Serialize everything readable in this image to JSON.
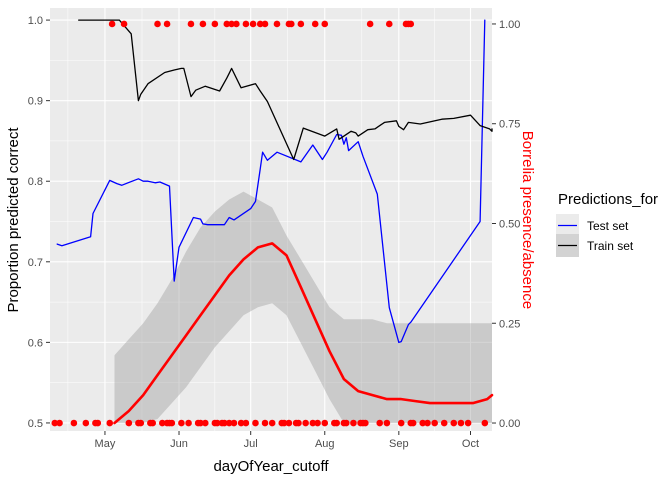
{
  "chart_data": {
    "type": "line",
    "xlabel": "dayOfYear_cutoff",
    "ylabel_left": "Proportion predicted correct",
    "ylabel_right": "Borrelia presence/absence",
    "xlim": [
      98,
      283
    ],
    "ylim_left": [
      0.49,
      1.015
    ],
    "ylim_right": [
      -0.02,
      1.04
    ],
    "x_ticks": [
      {
        "value": 121,
        "label": "May"
      },
      {
        "value": 152,
        "label": "Jun"
      },
      {
        "value": 182,
        "label": "Jul"
      },
      {
        "value": 213,
        "label": "Aug"
      },
      {
        "value": 244,
        "label": "Sep"
      },
      {
        "value": 274,
        "label": "Oct"
      }
    ],
    "y_ticks_left": [
      "0.5",
      "0.6",
      "0.7",
      "0.8",
      "0.9",
      "1.0"
    ],
    "y_ticks_right": [
      "0.00",
      "0.25",
      "0.50",
      "0.75",
      "1.00"
    ],
    "grid": true,
    "legend": {
      "title": "Predictions_for",
      "position": "right",
      "entries": [
        {
          "label": "Test set",
          "color": "#0000ff"
        },
        {
          "label": "Train set",
          "color": "#000000"
        }
      ]
    },
    "series": [
      {
        "name": "Test set",
        "axis": "left",
        "color": "#0000ff",
        "x": [
          101,
          103,
          115,
          116,
          123,
          126,
          128,
          135,
          137,
          139,
          142,
          144,
          148,
          150,
          152,
          158,
          161,
          162,
          164,
          165,
          171,
          173,
          175,
          182,
          184,
          186,
          187,
          189,
          193,
          203,
          208,
          212,
          214,
          218,
          220,
          221,
          222,
          223,
          227,
          229,
          235,
          240,
          244,
          245,
          248,
          249,
          278,
          280
        ],
        "y": [
          0.722,
          0.72,
          0.731,
          0.76,
          0.801,
          0.797,
          0.795,
          0.803,
          0.8,
          0.8,
          0.798,
          0.799,
          0.794,
          0.676,
          0.718,
          0.755,
          0.753,
          0.747,
          0.746,
          0.746,
          0.746,
          0.755,
          0.752,
          0.766,
          0.775,
          0.815,
          0.836,
          0.826,
          0.836,
          0.824,
          0.845,
          0.827,
          0.836,
          0.858,
          0.857,
          0.846,
          0.854,
          0.838,
          0.849,
          0.831,
          0.784,
          0.643,
          0.6,
          0.601,
          0.622,
          0.625,
          0.75,
          1.0
        ]
      },
      {
        "name": "Train set",
        "axis": "left",
        "color": "#000000",
        "x": [
          110,
          113,
          121,
          127,
          132,
          135,
          136,
          139,
          146,
          150,
          153,
          154,
          157,
          159,
          163,
          169,
          172,
          173,
          174,
          178,
          184,
          186,
          189,
          200,
          204,
          213,
          218,
          219,
          224,
          226,
          227,
          231,
          234,
          238,
          243,
          244,
          246,
          248,
          253,
          262,
          267,
          274,
          278,
          282,
          283,
          286
        ],
        "y": [
          1.0,
          1.0,
          1.0,
          1.0,
          0.983,
          0.9,
          0.908,
          0.921,
          0.935,
          0.938,
          0.94,
          0.94,
          0.905,
          0.913,
          0.918,
          0.912,
          0.928,
          0.934,
          0.94,
          0.916,
          0.921,
          0.912,
          0.899,
          0.827,
          0.866,
          0.856,
          0.865,
          0.852,
          0.862,
          0.86,
          0.856,
          0.864,
          0.865,
          0.873,
          0.875,
          0.868,
          0.864,
          0.873,
          0.871,
          0.877,
          0.878,
          0.882,
          0.869,
          0.865,
          0.862,
          0.865
        ]
      },
      {
        "name": "Smooth fit",
        "axis": "right",
        "color": "#ff0000",
        "x": [
          125,
          131,
          137,
          143,
          149,
          155,
          161,
          167,
          173,
          179,
          185,
          191,
          197,
          203,
          209,
          215,
          221,
          227,
          233,
          239,
          245,
          251,
          257,
          263,
          269,
          275,
          281,
          287
        ],
        "y": [
          0.0,
          0.03,
          0.07,
          0.12,
          0.17,
          0.22,
          0.27,
          0.32,
          0.37,
          0.41,
          0.44,
          0.45,
          0.42,
          0.34,
          0.26,
          0.18,
          0.11,
          0.08,
          0.07,
          0.06,
          0.06,
          0.055,
          0.05,
          0.05,
          0.05,
          0.05,
          0.06,
          0.07
        ],
        "ci_lower": [
          0.0,
          0.0,
          0.0,
          0.01,
          0.05,
          0.09,
          0.14,
          0.19,
          0.23,
          0.27,
          0.29,
          0.3,
          0.27,
          0.2,
          0.13,
          0.06,
          0.0,
          0.0,
          0.0,
          0.0,
          0.0,
          0.0,
          0.0,
          0.0,
          0.0,
          0.0,
          0.0,
          0.0
        ],
        "ci_upper": [
          0.17,
          0.21,
          0.25,
          0.3,
          0.36,
          0.43,
          0.49,
          0.53,
          0.56,
          0.58,
          0.56,
          0.54,
          0.47,
          0.41,
          0.35,
          0.29,
          0.26,
          0.26,
          0.26,
          0.25,
          0.25,
          0.25,
          0.25,
          0.25,
          0.25,
          0.25,
          0.25,
          0.25
        ]
      }
    ],
    "points": {
      "name": "Borrelia presence/absence",
      "axis": "right",
      "color": "#ff0000",
      "present_x": [
        124,
        129,
        143,
        147,
        157,
        162,
        167,
        172,
        174,
        176,
        180,
        183,
        186,
        188,
        193,
        198,
        199,
        203,
        209,
        213,
        232,
        240,
        247,
        248,
        249
      ],
      "absent_x": [
        100,
        102,
        108,
        113,
        117,
        118,
        123,
        131,
        135,
        136,
        140,
        141,
        145,
        147,
        148,
        149,
        153,
        156,
        160,
        161,
        163,
        167,
        168,
        170,
        171,
        173,
        175,
        178,
        180,
        184,
        188,
        191,
        195,
        196,
        198,
        201,
        202,
        205,
        208,
        210,
        213,
        217,
        218,
        221,
        222,
        225,
        228,
        229,
        230,
        236,
        239,
        245,
        249,
        250,
        254,
        256,
        259,
        263,
        267,
        270,
        273,
        280
      ]
    }
  }
}
